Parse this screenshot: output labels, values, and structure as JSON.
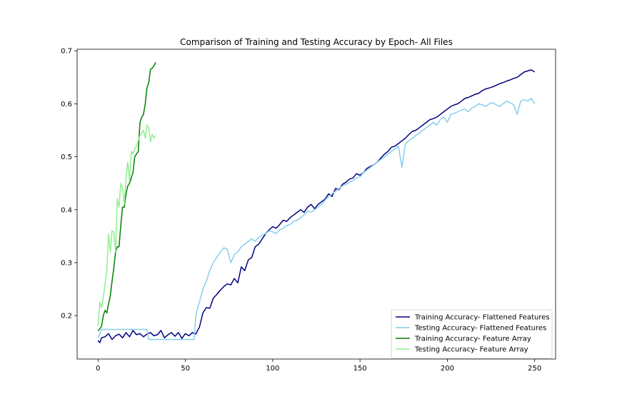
{
  "chart_data": {
    "type": "line",
    "title": "Comparison of Training and Testing Accuracy by Epoch- All Files",
    "xlabel": "",
    "ylabel": "",
    "xlim": [
      -12,
      262
    ],
    "ylim": [
      0.118,
      0.703
    ],
    "x_ticks": [
      0,
      50,
      100,
      150,
      200,
      250
    ],
    "y_ticks": [
      0.2,
      0.3,
      0.4,
      0.5,
      0.6,
      0.7
    ],
    "grid": false,
    "legend_position": "lower right",
    "series": [
      {
        "name": "Training Accuracy- Flattened Features",
        "color": "#000080",
        "x": [
          0,
          1,
          2,
          4,
          6,
          8,
          10,
          12,
          14,
          16,
          18,
          20,
          22,
          24,
          26,
          28,
          30,
          32,
          34,
          36,
          38,
          40,
          42,
          44,
          46,
          48,
          50,
          52,
          54,
          56,
          57,
          58,
          60,
          62,
          64,
          66,
          68,
          70,
          72,
          74,
          76,
          78,
          80,
          82,
          84,
          86,
          88,
          90,
          92,
          94,
          96,
          98,
          100,
          102,
          104,
          106,
          108,
          110,
          112,
          114,
          116,
          118,
          120,
          122,
          124,
          126,
          128,
          130,
          132,
          134,
          136,
          138,
          140,
          142,
          144,
          146,
          148,
          150,
          152,
          154,
          156,
          158,
          160,
          162,
          164,
          166,
          168,
          170,
          172,
          174,
          176,
          178,
          180,
          182,
          184,
          186,
          188,
          190,
          192,
          194,
          196,
          198,
          200,
          202,
          204,
          206,
          208,
          210,
          212,
          214,
          216,
          218,
          220,
          222,
          224,
          226,
          228,
          230,
          232,
          234,
          236,
          238,
          240,
          242,
          244,
          246,
          248,
          250
        ],
        "values": [
          0.153,
          0.149,
          0.158,
          0.16,
          0.166,
          0.155,
          0.162,
          0.165,
          0.158,
          0.168,
          0.16,
          0.172,
          0.164,
          0.166,
          0.16,
          0.165,
          0.168,
          0.162,
          0.164,
          0.172,
          0.158,
          0.164,
          0.168,
          0.161,
          0.168,
          0.157,
          0.166,
          0.162,
          0.168,
          0.165,
          0.172,
          0.178,
          0.205,
          0.215,
          0.214,
          0.233,
          0.24,
          0.248,
          0.255,
          0.26,
          0.258,
          0.27,
          0.262,
          0.292,
          0.285,
          0.305,
          0.31,
          0.33,
          0.335,
          0.345,
          0.355,
          0.362,
          0.368,
          0.365,
          0.372,
          0.38,
          0.378,
          0.385,
          0.39,
          0.395,
          0.4,
          0.395,
          0.405,
          0.41,
          0.402,
          0.41,
          0.415,
          0.42,
          0.43,
          0.425,
          0.44,
          0.438,
          0.448,
          0.452,
          0.458,
          0.46,
          0.468,
          0.465,
          0.47,
          0.478,
          0.482,
          0.485,
          0.49,
          0.498,
          0.505,
          0.51,
          0.518,
          0.52,
          0.525,
          0.53,
          0.535,
          0.542,
          0.548,
          0.55,
          0.555,
          0.56,
          0.565,
          0.57,
          0.572,
          0.575,
          0.58,
          0.585,
          0.59,
          0.595,
          0.598,
          0.6,
          0.605,
          0.61,
          0.612,
          0.615,
          0.618,
          0.62,
          0.625,
          0.628,
          0.63,
          0.632,
          0.635,
          0.638,
          0.64,
          0.643,
          0.645,
          0.648,
          0.65,
          0.655,
          0.66,
          0.662,
          0.664,
          0.66
        ]
      },
      {
        "name": "Testing Accuracy- Flattened Features",
        "color": "#87ceeb",
        "x": [
          0,
          1,
          2,
          28,
          29,
          55,
          56,
          57,
          58,
          60,
          62,
          64,
          66,
          68,
          70,
          72,
          74,
          76,
          78,
          80,
          82,
          84,
          86,
          88,
          90,
          92,
          94,
          96,
          98,
          100,
          102,
          104,
          106,
          108,
          110,
          112,
          114,
          116,
          118,
          120,
          122,
          124,
          126,
          128,
          130,
          132,
          134,
          136,
          138,
          140,
          142,
          144,
          146,
          148,
          150,
          152,
          154,
          156,
          158,
          160,
          162,
          164,
          166,
          168,
          170,
          172,
          174,
          176,
          178,
          180,
          182,
          184,
          186,
          188,
          190,
          192,
          194,
          196,
          198,
          200,
          202,
          204,
          206,
          208,
          210,
          212,
          214,
          216,
          218,
          220,
          222,
          224,
          226,
          228,
          230,
          232,
          234,
          236,
          238,
          240,
          242,
          244,
          246,
          248,
          250
        ],
        "values": [
          0.158,
          0.165,
          0.174,
          0.174,
          0.155,
          0.155,
          0.2,
          0.215,
          0.225,
          0.25,
          0.265,
          0.285,
          0.3,
          0.31,
          0.32,
          0.328,
          0.325,
          0.3,
          0.315,
          0.32,
          0.33,
          0.335,
          0.34,
          0.345,
          0.34,
          0.348,
          0.352,
          0.355,
          0.36,
          0.358,
          0.355,
          0.362,
          0.365,
          0.37,
          0.372,
          0.378,
          0.38,
          0.385,
          0.39,
          0.398,
          0.395,
          0.4,
          0.405,
          0.41,
          0.418,
          0.425,
          0.43,
          0.435,
          0.44,
          0.445,
          0.448,
          0.452,
          0.455,
          0.46,
          0.462,
          0.47,
          0.475,
          0.48,
          0.485,
          0.49,
          0.495,
          0.5,
          0.505,
          0.51,
          0.515,
          0.52,
          0.48,
          0.525,
          0.53,
          0.535,
          0.54,
          0.545,
          0.55,
          0.555,
          0.56,
          0.565,
          0.56,
          0.57,
          0.575,
          0.565,
          0.58,
          0.582,
          0.585,
          0.588,
          0.59,
          0.585,
          0.592,
          0.595,
          0.6,
          0.598,
          0.595,
          0.6,
          0.602,
          0.598,
          0.595,
          0.6,
          0.605,
          0.602,
          0.598,
          0.58,
          0.605,
          0.608,
          0.605,
          0.61,
          0.6
        ]
      },
      {
        "name": "Training Accuracy- Feature Array",
        "color": "#008000",
        "x": [
          0,
          1,
          2,
          3,
          4,
          5,
          6,
          7,
          8,
          9,
          10,
          11,
          12,
          13,
          14,
          15,
          16,
          17,
          18,
          19,
          20,
          21,
          22,
          23,
          24,
          25,
          26,
          27,
          28,
          29,
          30,
          31,
          32,
          33
        ],
        "values": [
          0.171,
          0.175,
          0.18,
          0.2,
          0.21,
          0.205,
          0.222,
          0.238,
          0.265,
          0.29,
          0.32,
          0.33,
          0.33,
          0.37,
          0.405,
          0.405,
          0.43,
          0.445,
          0.45,
          0.46,
          0.47,
          0.5,
          0.505,
          0.51,
          0.565,
          0.575,
          0.58,
          0.6,
          0.63,
          0.64,
          0.665,
          0.667,
          0.672,
          0.678
        ]
      },
      {
        "name": "Testing Accuracy- Feature Array",
        "color": "#90ee90",
        "x": [
          0,
          1,
          2,
          3,
          4,
          5,
          6,
          7,
          8,
          9,
          10,
          11,
          12,
          13,
          14,
          15,
          16,
          17,
          18,
          19,
          20,
          21,
          22,
          23,
          24,
          25,
          26,
          27,
          28,
          29,
          30,
          31,
          32,
          33
        ],
        "values": [
          0.18,
          0.225,
          0.215,
          0.235,
          0.26,
          0.285,
          0.355,
          0.32,
          0.36,
          0.358,
          0.32,
          0.42,
          0.405,
          0.45,
          0.44,
          0.41,
          0.46,
          0.49,
          0.455,
          0.51,
          0.505,
          0.515,
          0.52,
          0.53,
          0.54,
          0.545,
          0.55,
          0.535,
          0.56,
          0.555,
          0.528,
          0.542,
          0.535,
          0.54
        ]
      }
    ]
  }
}
